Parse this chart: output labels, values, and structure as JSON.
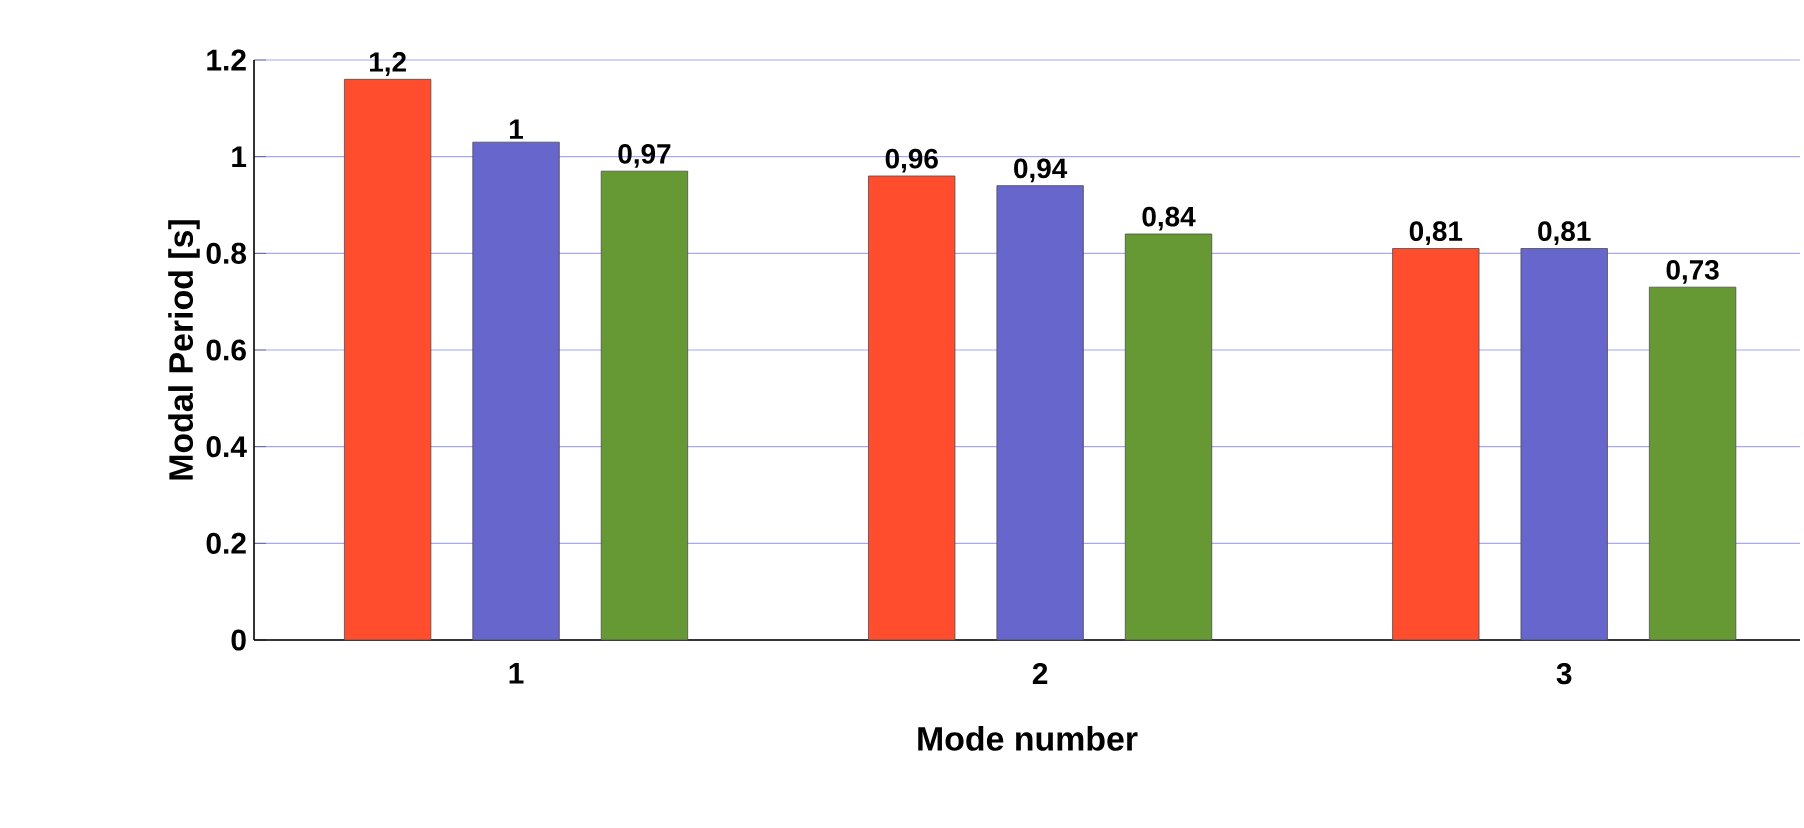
{
  "chart_data": {
    "type": "bar",
    "xlabel": "Mode number",
    "ylabel": "Modal Period [s]",
    "categories": [
      "1",
      "2",
      "3"
    ],
    "series": [
      {
        "color": "#ff4d2e",
        "values": [
          1.16,
          0.96,
          0.81
        ],
        "value_labels": [
          "1,2",
          "0,96",
          "0,81"
        ]
      },
      {
        "color": "#6666cc",
        "values": [
          1.03,
          0.94,
          0.81
        ],
        "value_labels": [
          "1",
          "0,94",
          "0,81"
        ]
      },
      {
        "color": "#669933",
        "values": [
          0.97,
          0.84,
          0.73
        ],
        "value_labels": [
          "0,97",
          "0,84",
          "0,73"
        ]
      }
    ],
    "ylim": [
      0,
      1.2
    ],
    "yticks": [
      0,
      0.2,
      0.4,
      0.6,
      0.8,
      1,
      1.2
    ],
    "grid": "y",
    "legend": false
  }
}
